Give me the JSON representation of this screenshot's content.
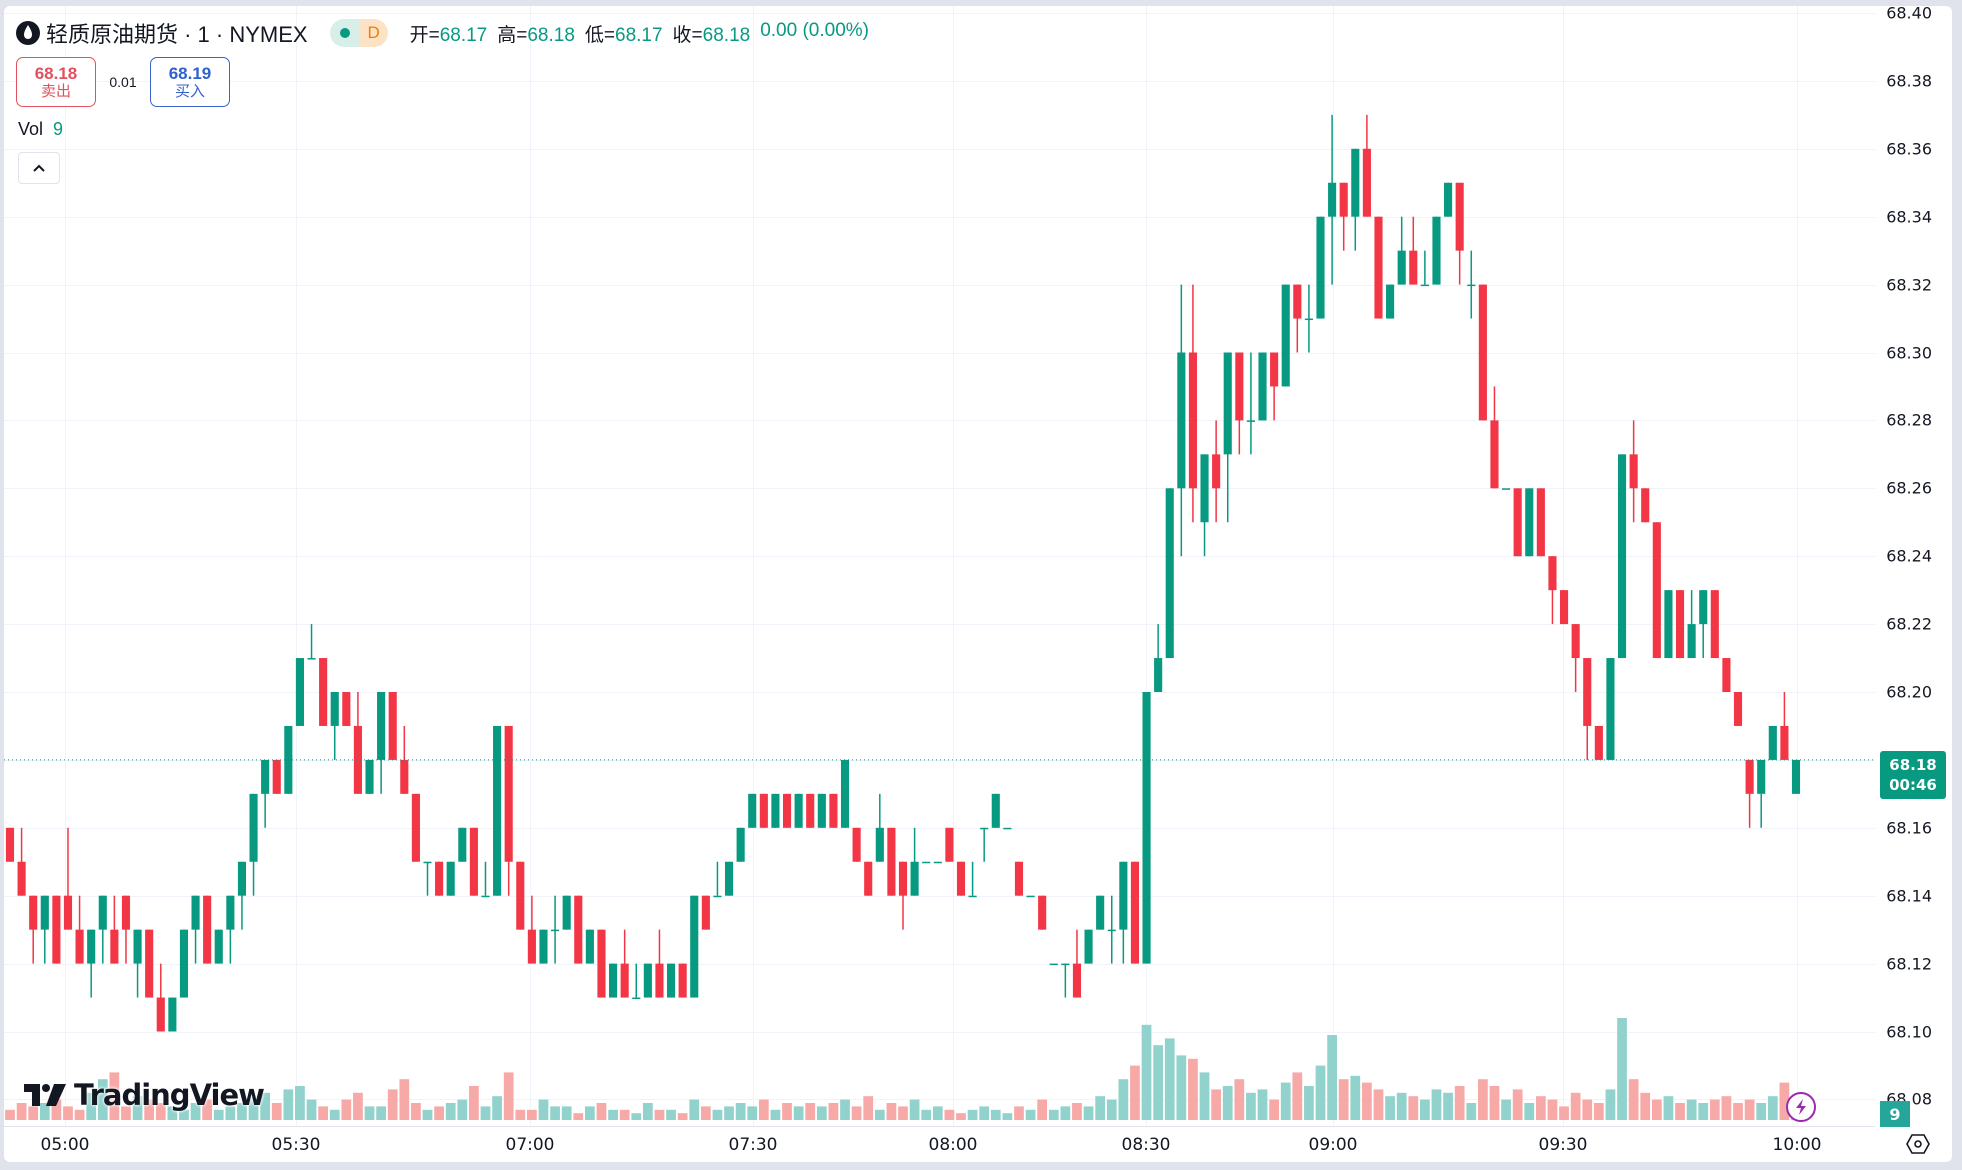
{
  "header": {
    "symbol_title": "轻质原油期货 · 1 · NYMEX",
    "status_badge": "D",
    "ohlc": [
      {
        "key": "开=",
        "value": "68.17"
      },
      {
        "key": "高=",
        "value": "68.18"
      },
      {
        "key": "低=",
        "value": "68.17"
      },
      {
        "key": "收=",
        "value": "68.18"
      },
      {
        "key": "",
        "value": "0.00 (0.00%)"
      }
    ]
  },
  "trade": {
    "sell_price": "68.18",
    "sell_label": "卖出",
    "spread": "0.01",
    "buy_price": "68.19",
    "buy_label": "买入"
  },
  "volume_legend": {
    "label": "Vol",
    "value": "9"
  },
  "price_axis": {
    "labels": [
      "68.40",
      "68.38",
      "68.36",
      "68.34",
      "68.32",
      "68.30",
      "68.28",
      "68.26",
      "68.24",
      "68.22",
      "68.20",
      "68.16",
      "68.14",
      "68.12",
      "68.10",
      "68.08"
    ],
    "last_price": "68.18",
    "countdown": "00:46",
    "volume_tag": "9"
  },
  "time_axis": {
    "labels": [
      "05:00",
      "05:30",
      "07:00",
      "07:30",
      "08:00",
      "08:30",
      "09:00",
      "09:30",
      "10:00"
    ]
  },
  "branding": {
    "logo_text": "TradingView"
  },
  "colors": {
    "up": "#089981",
    "down": "#f23645",
    "vol_up": "#92d2cc",
    "vol_down": "#f7a9a7",
    "grid": "#f0f3fa"
  },
  "chart_data": {
    "type": "candlestick",
    "title": "轻质原油期货 · 1 · NYMEX",
    "interval": "1 minute",
    "ylim": [
      68.08,
      68.4
    ],
    "x_tick_labels": [
      "05:00",
      "05:30",
      "07:00",
      "07:30",
      "08:00",
      "08:30",
      "09:00",
      "09:30",
      "10:00"
    ],
    "last_price": 68.18,
    "candles": [
      [
        68.16,
        68.15,
        68.16,
        68.15,
        3
      ],
      [
        68.15,
        68.16,
        68.14,
        68.14,
        5
      ],
      [
        68.14,
        68.14,
        68.12,
        68.13,
        4
      ],
      [
        68.13,
        68.14,
        68.12,
        68.14,
        5
      ],
      [
        68.14,
        68.14,
        68.12,
        68.12,
        6
      ],
      [
        68.14,
        68.16,
        68.13,
        68.13,
        4
      ],
      [
        68.13,
        68.14,
        68.12,
        68.12,
        3
      ],
      [
        68.12,
        68.13,
        68.11,
        68.13,
        8
      ],
      [
        68.13,
        68.14,
        68.12,
        68.14,
        12
      ],
      [
        68.13,
        68.14,
        68.12,
        68.12,
        14
      ],
      [
        68.14,
        68.14,
        68.12,
        68.13,
        4
      ],
      [
        68.12,
        68.13,
        68.11,
        68.13,
        7
      ],
      [
        68.13,
        68.13,
        68.11,
        68.11,
        6
      ],
      [
        68.11,
        68.12,
        68.1,
        68.1,
        5
      ],
      [
        68.1,
        68.11,
        68.1,
        68.11,
        4
      ],
      [
        68.11,
        68.13,
        68.11,
        68.13,
        3
      ],
      [
        68.13,
        68.14,
        68.12,
        68.14,
        5
      ],
      [
        68.14,
        68.14,
        68.12,
        68.12,
        6
      ],
      [
        68.12,
        68.13,
        68.12,
        68.13,
        3
      ],
      [
        68.13,
        68.14,
        68.12,
        68.14,
        4
      ],
      [
        68.14,
        68.15,
        68.13,
        68.15,
        5
      ],
      [
        68.15,
        68.17,
        68.14,
        68.17,
        7
      ],
      [
        68.17,
        68.18,
        68.16,
        68.18,
        8
      ],
      [
        68.18,
        68.18,
        68.17,
        68.17,
        5
      ],
      [
        68.17,
        68.19,
        68.17,
        68.19,
        9
      ],
      [
        68.19,
        68.21,
        68.19,
        68.21,
        10
      ],
      [
        68.21,
        68.22,
        68.21,
        68.21,
        6
      ],
      [
        68.21,
        68.21,
        68.19,
        68.19,
        4
      ],
      [
        68.19,
        68.2,
        68.18,
        68.2,
        3
      ],
      [
        68.2,
        68.2,
        68.19,
        68.19,
        6
      ],
      [
        68.19,
        68.2,
        68.17,
        68.17,
        8
      ],
      [
        68.17,
        68.18,
        68.17,
        68.18,
        4
      ],
      [
        68.18,
        68.2,
        68.17,
        68.2,
        4
      ],
      [
        68.2,
        68.2,
        68.18,
        68.18,
        9
      ],
      [
        68.18,
        68.19,
        68.17,
        68.17,
        12
      ],
      [
        68.17,
        68.17,
        68.15,
        68.15,
        5
      ],
      [
        68.15,
        68.15,
        68.14,
        68.15,
        3
      ],
      [
        68.15,
        68.15,
        68.14,
        68.14,
        4
      ],
      [
        68.14,
        68.15,
        68.14,
        68.15,
        5
      ],
      [
        68.15,
        68.16,
        68.15,
        68.16,
        6
      ],
      [
        68.16,
        68.16,
        68.14,
        68.14,
        10
      ],
      [
        68.14,
        68.15,
        68.14,
        68.14,
        4
      ],
      [
        68.14,
        68.19,
        68.14,
        68.19,
        7
      ],
      [
        68.19,
        68.19,
        68.14,
        68.15,
        14
      ],
      [
        68.15,
        68.15,
        68.13,
        68.13,
        3
      ],
      [
        68.13,
        68.14,
        68.12,
        68.12,
        3
      ],
      [
        68.12,
        68.13,
        68.12,
        68.13,
        6
      ],
      [
        68.13,
        68.14,
        68.12,
        68.13,
        4
      ],
      [
        68.13,
        68.14,
        68.13,
        68.14,
        4
      ],
      [
        68.14,
        68.14,
        68.12,
        68.12,
        2
      ],
      [
        68.12,
        68.13,
        68.12,
        68.13,
        4
      ],
      [
        68.13,
        68.13,
        68.11,
        68.11,
        5
      ],
      [
        68.11,
        68.12,
        68.11,
        68.12,
        3
      ],
      [
        68.12,
        68.13,
        68.11,
        68.11,
        3
      ],
      [
        68.11,
        68.12,
        68.11,
        68.11,
        2
      ],
      [
        68.11,
        68.12,
        68.11,
        68.12,
        5
      ],
      [
        68.12,
        68.13,
        68.11,
        68.11,
        3
      ],
      [
        68.11,
        68.12,
        68.11,
        68.12,
        3
      ],
      [
        68.12,
        68.12,
        68.11,
        68.11,
        2
      ],
      [
        68.11,
        68.14,
        68.11,
        68.14,
        6
      ],
      [
        68.14,
        68.14,
        68.13,
        68.13,
        4
      ],
      [
        68.14,
        68.15,
        68.14,
        68.14,
        3
      ],
      [
        68.14,
        68.15,
        68.14,
        68.15,
        4
      ],
      [
        68.15,
        68.16,
        68.15,
        68.16,
        5
      ],
      [
        68.16,
        68.17,
        68.16,
        68.17,
        4
      ],
      [
        68.17,
        68.17,
        68.16,
        68.16,
        6
      ],
      [
        68.16,
        68.17,
        68.16,
        68.17,
        3
      ],
      [
        68.17,
        68.17,
        68.16,
        68.16,
        5
      ],
      [
        68.16,
        68.17,
        68.16,
        68.17,
        4
      ],
      [
        68.17,
        68.17,
        68.16,
        68.16,
        5
      ],
      [
        68.16,
        68.17,
        68.16,
        68.17,
        4
      ],
      [
        68.17,
        68.17,
        68.16,
        68.16,
        5
      ],
      [
        68.16,
        68.18,
        68.16,
        68.18,
        6
      ],
      [
        68.16,
        68.16,
        68.15,
        68.15,
        4
      ],
      [
        68.15,
        68.15,
        68.14,
        68.14,
        7
      ],
      [
        68.15,
        68.17,
        68.15,
        68.16,
        3
      ],
      [
        68.16,
        68.16,
        68.14,
        68.14,
        5
      ],
      [
        68.15,
        68.15,
        68.13,
        68.14,
        4
      ],
      [
        68.14,
        68.16,
        68.14,
        68.15,
        6
      ],
      [
        68.15,
        68.15,
        68.15,
        68.15,
        3
      ],
      [
        68.15,
        68.15,
        68.15,
        68.15,
        4
      ],
      [
        68.16,
        68.16,
        68.15,
        68.15,
        3
      ],
      [
        68.15,
        68.15,
        68.14,
        68.14,
        2
      ],
      [
        68.14,
        68.15,
        68.14,
        68.14,
        3
      ],
      [
        68.16,
        68.16,
        68.15,
        68.16,
        4
      ],
      [
        68.16,
        68.17,
        68.16,
        68.17,
        3
      ],
      [
        68.16,
        68.16,
        68.16,
        68.16,
        2
      ],
      [
        68.15,
        68.15,
        68.14,
        68.14,
        4
      ],
      [
        68.14,
        68.14,
        68.14,
        68.14,
        3
      ],
      [
        68.14,
        68.14,
        68.13,
        68.13,
        6
      ],
      [
        68.12,
        68.12,
        68.12,
        68.12,
        3
      ],
      [
        68.12,
        68.12,
        68.11,
        68.12,
        4
      ],
      [
        68.12,
        68.13,
        68.11,
        68.11,
        5
      ],
      [
        68.12,
        68.13,
        68.12,
        68.13,
        4
      ],
      [
        68.13,
        68.14,
        68.13,
        68.14,
        7
      ],
      [
        68.13,
        68.14,
        68.12,
        68.13,
        6
      ],
      [
        68.13,
        68.15,
        68.12,
        68.15,
        12
      ],
      [
        68.15,
        68.15,
        68.12,
        68.12,
        16
      ],
      [
        68.12,
        68.2,
        68.12,
        68.2,
        28
      ],
      [
        68.2,
        68.22,
        68.2,
        68.21,
        22
      ],
      [
        68.21,
        68.26,
        68.21,
        68.26,
        24
      ],
      [
        68.26,
        68.32,
        68.24,
        68.3,
        19
      ],
      [
        68.3,
        68.32,
        68.25,
        68.26,
        18
      ],
      [
        68.25,
        68.27,
        68.24,
        68.27,
        14
      ],
      [
        68.27,
        68.28,
        68.25,
        68.26,
        9
      ],
      [
        68.27,
        68.3,
        68.25,
        68.3,
        10
      ],
      [
        68.3,
        68.3,
        68.27,
        68.28,
        12
      ],
      [
        68.28,
        68.3,
        68.27,
        68.28,
        8
      ],
      [
        68.28,
        68.3,
        68.28,
        68.3,
        9
      ],
      [
        68.3,
        68.3,
        68.28,
        68.29,
        6
      ],
      [
        68.29,
        68.32,
        68.29,
        68.32,
        11
      ],
      [
        68.32,
        68.32,
        68.3,
        68.31,
        14
      ],
      [
        68.31,
        68.32,
        68.3,
        68.31,
        10
      ],
      [
        68.31,
        68.34,
        68.31,
        68.34,
        16
      ],
      [
        68.34,
        68.37,
        68.32,
        68.35,
        25
      ],
      [
        68.35,
        68.35,
        68.33,
        68.34,
        12
      ],
      [
        68.34,
        68.36,
        68.33,
        68.36,
        13
      ],
      [
        68.36,
        68.37,
        68.34,
        68.34,
        11
      ],
      [
        68.34,
        68.34,
        68.31,
        68.31,
        9
      ],
      [
        68.31,
        68.32,
        68.31,
        68.32,
        7
      ],
      [
        68.32,
        68.34,
        68.32,
        68.33,
        8
      ],
      [
        68.33,
        68.34,
        68.32,
        68.32,
        7
      ],
      [
        68.32,
        68.33,
        68.32,
        68.32,
        6
      ],
      [
        68.32,
        68.34,
        68.32,
        68.34,
        9
      ],
      [
        68.34,
        68.35,
        68.34,
        68.35,
        8
      ],
      [
        68.35,
        68.34,
        68.32,
        68.33,
        10
      ],
      [
        68.32,
        68.33,
        68.31,
        68.32,
        5
      ],
      [
        68.32,
        68.32,
        68.28,
        68.28,
        12
      ],
      [
        68.28,
        68.29,
        68.26,
        68.26,
        10
      ],
      [
        68.26,
        68.26,
        68.26,
        68.26,
        6
      ],
      [
        68.26,
        68.26,
        68.24,
        68.24,
        9
      ],
      [
        68.24,
        68.26,
        68.24,
        68.26,
        5
      ],
      [
        68.26,
        68.26,
        68.24,
        68.24,
        7
      ],
      [
        68.24,
        68.24,
        68.22,
        68.23,
        6
      ],
      [
        68.23,
        68.23,
        68.22,
        68.22,
        4
      ],
      [
        68.22,
        68.22,
        68.2,
        68.21,
        8
      ],
      [
        68.21,
        68.21,
        68.18,
        68.19,
        6
      ],
      [
        68.19,
        68.19,
        68.18,
        68.18,
        5
      ],
      [
        68.18,
        68.21,
        68.18,
        68.21,
        9
      ],
      [
        68.21,
        68.27,
        68.21,
        68.27,
        30
      ],
      [
        68.27,
        68.28,
        68.25,
        68.26,
        12
      ],
      [
        68.26,
        68.26,
        68.25,
        68.25,
        8
      ],
      [
        68.25,
        68.25,
        68.21,
        68.21,
        6
      ],
      [
        68.21,
        68.23,
        68.21,
        68.23,
        7
      ],
      [
        68.23,
        68.23,
        68.21,
        68.21,
        5
      ],
      [
        68.21,
        68.23,
        68.21,
        68.22,
        6
      ],
      [
        68.22,
        68.23,
        68.21,
        68.23,
        5
      ],
      [
        68.23,
        68.23,
        68.21,
        68.21,
        6
      ],
      [
        68.21,
        68.21,
        68.2,
        68.2,
        7
      ],
      [
        68.2,
        68.2,
        68.19,
        68.19,
        5
      ],
      [
        68.18,
        68.18,
        68.16,
        68.17,
        6
      ],
      [
        68.17,
        68.17,
        68.16,
        68.18,
        5
      ],
      [
        68.18,
        68.19,
        68.18,
        68.19,
        7
      ],
      [
        68.19,
        68.2,
        68.18,
        68.18,
        11
      ],
      [
        68.17,
        68.18,
        68.17,
        68.18,
        2
      ]
    ]
  }
}
